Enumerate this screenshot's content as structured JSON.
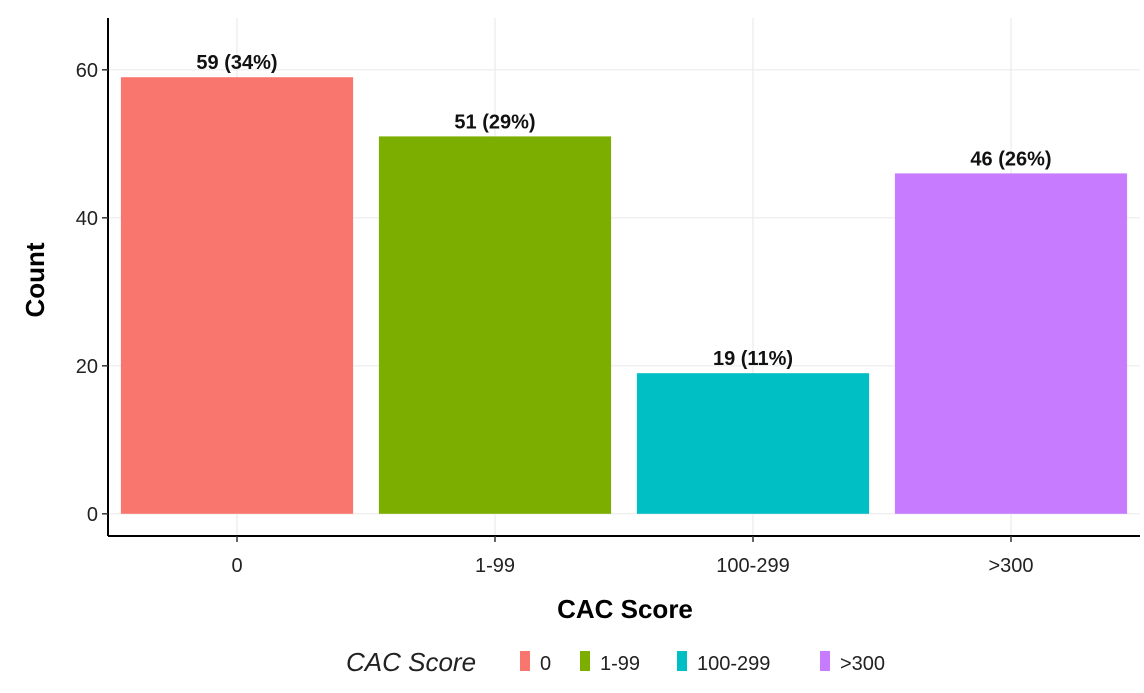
{
  "chart_data": {
    "type": "bar",
    "categories": [
      "0",
      "1-99",
      "100-299",
      ">300"
    ],
    "values": [
      59,
      51,
      19,
      46
    ],
    "data_labels": [
      "59 (34%)",
      "51 (29%)",
      "19 (11%)",
      "46 (26%)"
    ],
    "colors": [
      "#f8766d",
      "#7cae00",
      "#00bfc4",
      "#c77cff"
    ],
    "xlabel": "CAC Score",
    "ylabel": "Count",
    "ylim": [
      -3,
      67
    ],
    "yticks": [
      0,
      20,
      40,
      60
    ],
    "ytick_labels": [
      "0",
      "20",
      "40",
      "60"
    ],
    "grid": true,
    "legend": {
      "title": "CAC Score",
      "position": "bottom",
      "entries": [
        "0",
        "1-99",
        "100-299",
        ">300"
      ]
    }
  }
}
